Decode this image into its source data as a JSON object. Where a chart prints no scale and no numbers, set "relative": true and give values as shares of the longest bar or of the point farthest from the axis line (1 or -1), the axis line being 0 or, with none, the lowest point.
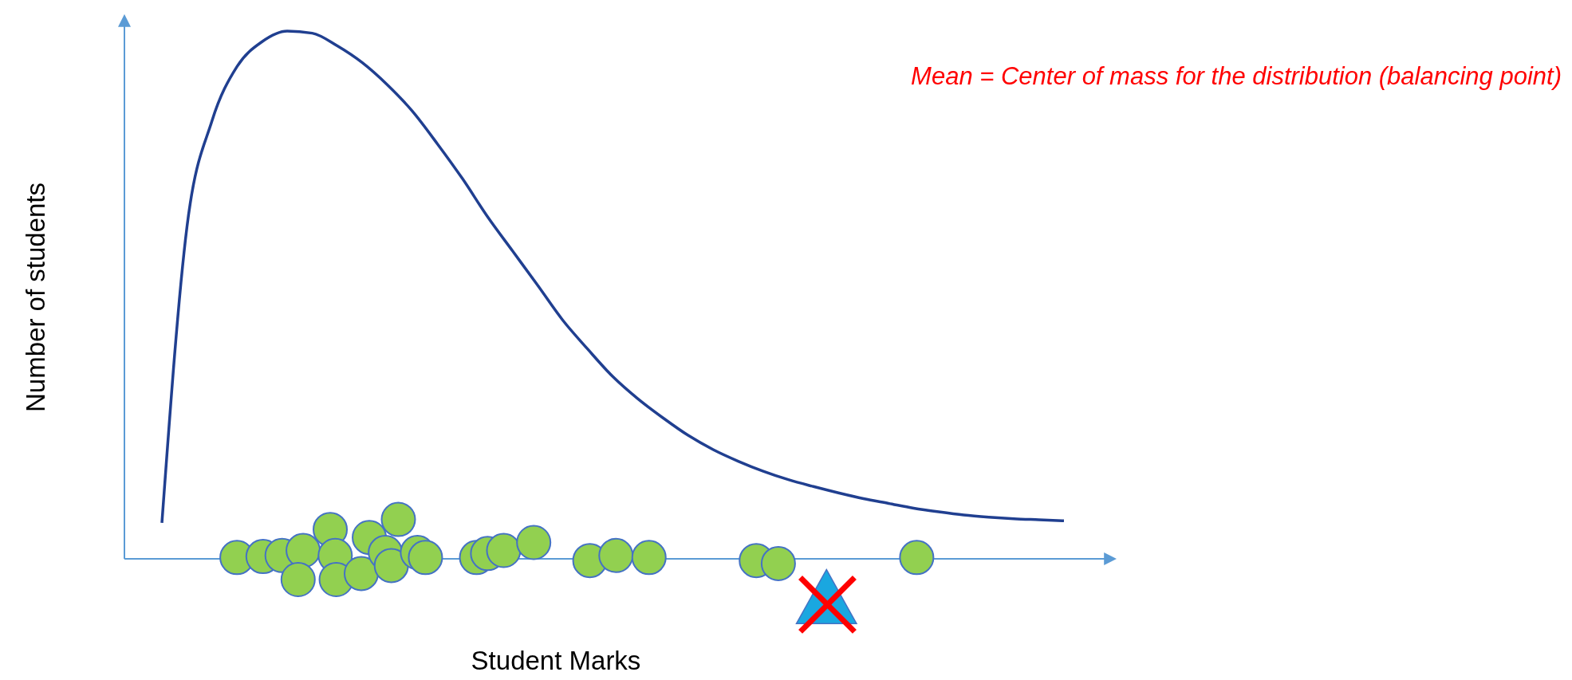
{
  "chart_data": {
    "type": "line",
    "xlabel": "Student Marks",
    "ylabel": "Number of students",
    "annotations": [
      "Mean = Center of mass for the distribution (balancing point)"
    ],
    "categories": [
      null,
      null,
      null,
      null,
      null,
      null,
      null,
      null,
      null,
      null,
      null,
      null,
      null,
      null,
      null,
      null,
      null,
      null,
      null,
      null,
      null,
      null,
      null,
      null,
      null,
      null,
      null,
      null,
      null,
      null,
      null,
      null,
      null,
      null,
      null,
      null,
      null
    ],
    "series": [
      {
        "color": "#203f90",
        "values": [
          0.068,
          0.629,
          0.83,
          0.933,
          0.98,
          1,
          0.996,
          0.972,
          0.94,
          0.898,
          0.848,
          0.786,
          0.72,
          0.648,
          0.583,
          0.518,
          0.452,
          0.397,
          0.345,
          0.303,
          0.267,
          0.234,
          0.207,
          0.185,
          0.166,
          0.15,
          0.137,
          0.125,
          0.114,
          0.105,
          0.096,
          0.089,
          0.083,
          0.079,
          0.076,
          0.074,
          0.072
        ]
      }
    ],
    "relative": true
  }
}
